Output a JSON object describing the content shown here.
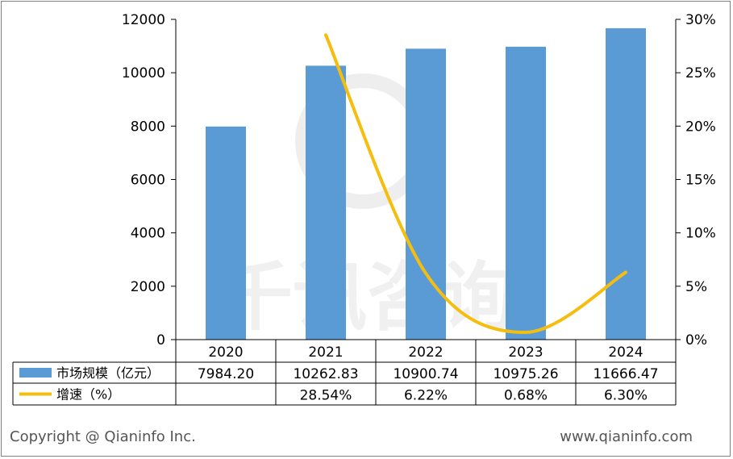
{
  "chart_data": {
    "type": "bar",
    "categories": [
      "2020",
      "2021",
      "2022",
      "2023",
      "2024"
    ],
    "series": [
      {
        "name": "市场规模（亿元）",
        "type": "bar",
        "axis": "left",
        "color": "#5B9BD5",
        "values": [
          7984.2,
          10262.83,
          10900.74,
          10975.26,
          11666.47
        ],
        "labels": [
          "7984.20",
          "10262.83",
          "10900.74",
          "10975.26",
          "11666.47"
        ]
      },
      {
        "name": "增速（%）",
        "type": "line",
        "smooth": true,
        "axis": "right",
        "color": "#F5BE0F",
        "values": [
          null,
          28.54,
          6.22,
          0.68,
          6.3
        ],
        "labels": [
          "",
          "28.54%",
          "6.22%",
          "0.68%",
          "6.30%"
        ]
      }
    ],
    "y_left": {
      "min": 0,
      "max": 12000,
      "ticks": [
        "0",
        "2000",
        "4000",
        "6000",
        "8000",
        "10000",
        "12000"
      ]
    },
    "y_right": {
      "min": 0,
      "max": 30,
      "ticks": [
        "0%",
        "5%",
        "10%",
        "15%",
        "20%",
        "25%",
        "30%"
      ]
    },
    "grid": false,
    "legend": "data-table"
  },
  "watermark": "千讯咨询 www.qianinfo.com",
  "footer": {
    "copyright": "Copyright @ Qianinfo Inc.",
    "website": "www.qianinfo.com"
  }
}
